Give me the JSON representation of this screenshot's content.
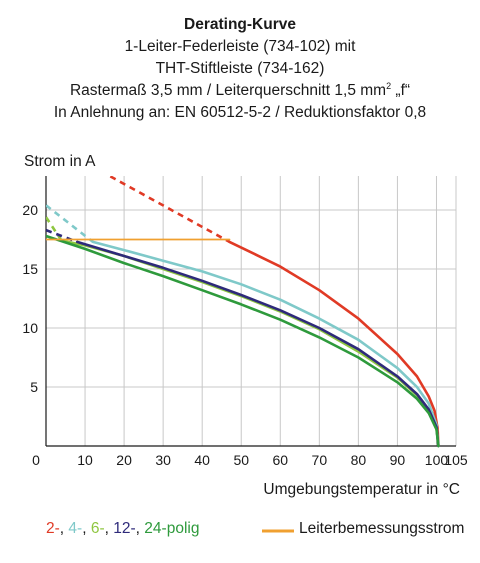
{
  "title": {
    "line1": "Derating-Kurve",
    "line2": "1-Leiter-Federleiste (734-102) mit",
    "line3": "THT-Stiftleiste (734-162)",
    "line4_pre": "Rastermaß 3,5 mm / Leiterquerschnitt 1,5 mm",
    "line4_sup": "2",
    "line4_post": " „f“",
    "line5": "In Anlehnung an: EN 60512-5-2 / Reduktionsfaktor 0,8"
  },
  "legend": {
    "items": [
      {
        "text": "2-",
        "color": "#e03a25"
      },
      {
        "text": ", ",
        "color": "#1a1a1a"
      },
      {
        "text": "4-",
        "color": "#7fc9c9"
      },
      {
        "text": ", ",
        "color": "#1a1a1a"
      },
      {
        "text": "6-",
        "color": "#8ec63f"
      },
      {
        "text": ", ",
        "color": "#1a1a1a"
      },
      {
        "text": "12-",
        "color": "#2e2a7a"
      },
      {
        "text": ", ",
        "color": "#1a1a1a"
      },
      {
        "text": "24-polig",
        "color": "#2e9a3c"
      }
    ],
    "rated_label": "Leiterbemessungsstrom",
    "rated_color": "#f0a030"
  },
  "chart_data": {
    "type": "line",
    "title": "Derating-Kurve",
    "xlabel": "Umgebungstemperatur in °C",
    "ylabel": "Strom in A",
    "xlim": [
      0,
      105
    ],
    "ylim": [
      0,
      20
    ],
    "xticks": [
      0,
      10,
      20,
      30,
      40,
      50,
      60,
      70,
      80,
      90,
      100,
      105
    ],
    "yticks": [
      0,
      5,
      10,
      15,
      20
    ],
    "grid": true,
    "series": [
      {
        "name": "2-polig",
        "color": "#e03a25",
        "width": 2.6,
        "solid": [
          [
            47,
            17.3
          ],
          [
            52,
            16.5
          ],
          [
            60,
            15.2
          ],
          [
            70,
            13.2
          ],
          [
            80,
            10.8
          ],
          [
            90,
            7.8
          ],
          [
            95,
            5.9
          ],
          [
            98,
            4.2
          ],
          [
            99.5,
            3.0
          ],
          [
            100.3,
            1.5
          ],
          [
            100.5,
            0
          ]
        ],
        "dashed": [
          [
            14,
            23.3
          ],
          [
            47,
            17.3
          ]
        ]
      },
      {
        "name": "4-polig",
        "color": "#7fc9c9",
        "width": 2.6,
        "solid": [
          [
            12,
            17.3
          ],
          [
            20,
            16.6
          ],
          [
            30,
            15.7
          ],
          [
            40,
            14.8
          ],
          [
            50,
            13.7
          ],
          [
            60,
            12.4
          ],
          [
            70,
            10.8
          ],
          [
            80,
            9.0
          ],
          [
            90,
            6.6
          ],
          [
            95,
            5.0
          ],
          [
            98,
            3.6
          ],
          [
            100,
            1.8
          ],
          [
            100.5,
            0
          ]
        ],
        "dashed": [
          [
            0,
            20.4
          ],
          [
            12,
            17.3
          ]
        ]
      },
      {
        "name": "6-polig",
        "color": "#8ec63f",
        "width": 2.6,
        "solid": [
          [
            4,
            17.4
          ],
          [
            10,
            17.0
          ],
          [
            20,
            16.1
          ],
          [
            30,
            15.0
          ],
          [
            40,
            13.9
          ],
          [
            50,
            12.7
          ],
          [
            60,
            11.4
          ],
          [
            70,
            9.9
          ],
          [
            80,
            8.0
          ],
          [
            90,
            5.8
          ],
          [
            95,
            4.3
          ],
          [
            98,
            3.0
          ],
          [
            100,
            1.5
          ],
          [
            100.5,
            0
          ]
        ],
        "dashed": [
          [
            0,
            19.4
          ],
          [
            4,
            17.4
          ]
        ]
      },
      {
        "name": "12-polig",
        "color": "#2e2a7a",
        "width": 2.6,
        "solid": [
          [
            8,
            17.3
          ],
          [
            10,
            17.1
          ],
          [
            20,
            16.1
          ],
          [
            30,
            15.1
          ],
          [
            40,
            14.0
          ],
          [
            50,
            12.8
          ],
          [
            60,
            11.5
          ],
          [
            70,
            10.0
          ],
          [
            80,
            8.2
          ],
          [
            90,
            5.9
          ],
          [
            95,
            4.4
          ],
          [
            98,
            3.1
          ],
          [
            100,
            1.6
          ],
          [
            100.5,
            0
          ]
        ],
        "dashed": [
          [
            0,
            18.3
          ],
          [
            8,
            17.3
          ]
        ]
      },
      {
        "name": "24-polig",
        "color": "#2e9a3c",
        "width": 2.6,
        "solid": [
          [
            0,
            17.8
          ],
          [
            10,
            16.7
          ],
          [
            20,
            15.5
          ],
          [
            30,
            14.4
          ],
          [
            40,
            13.2
          ],
          [
            50,
            12.0
          ],
          [
            60,
            10.7
          ],
          [
            70,
            9.2
          ],
          [
            80,
            7.5
          ],
          [
            90,
            5.4
          ],
          [
            95,
            4.0
          ],
          [
            98,
            2.8
          ],
          [
            100,
            1.4
          ],
          [
            100.5,
            0
          ]
        ],
        "dashed": []
      },
      {
        "name": "Leiterbemessungsstrom",
        "color": "#f0a030",
        "width": 1.8,
        "solid": [
          [
            0,
            17.5
          ],
          [
            47,
            17.5
          ]
        ],
        "dashed": []
      }
    ]
  }
}
